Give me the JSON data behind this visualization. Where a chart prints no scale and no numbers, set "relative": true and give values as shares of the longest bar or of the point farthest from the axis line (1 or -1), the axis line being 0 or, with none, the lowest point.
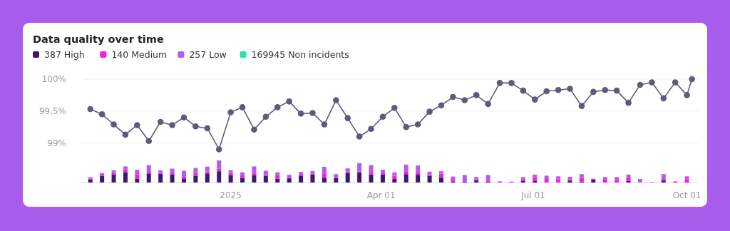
{
  "chart_data": [
    {
      "type": "line",
      "title": "Data quality over time",
      "grid": "y",
      "tick_labels": "y",
      "color": "#5f5a7a",
      "marker": "circle",
      "x": [
        "2024-10-09",
        "2024-10-16",
        "2024-10-23",
        "2024-10-30",
        "2024-11-06",
        "2024-11-13",
        "2024-11-20",
        "2024-11-27",
        "2024-12-04",
        "2024-12-11",
        "2024-12-18",
        "2024-12-25",
        "2025-01-01",
        "2025-01-08",
        "2025-01-15",
        "2025-01-22",
        "2025-01-29",
        "2025-02-05",
        "2025-02-12",
        "2025-02-19",
        "2025-02-26",
        "2025-03-05",
        "2025-03-12",
        "2025-03-19",
        "2025-03-26",
        "2025-04-02",
        "2025-04-09",
        "2025-04-16",
        "2025-04-23",
        "2025-04-30",
        "2025-05-07",
        "2025-05-14",
        "2025-05-21",
        "2025-05-28",
        "2025-06-04",
        "2025-06-11",
        "2025-06-18",
        "2025-06-25",
        "2025-07-02",
        "2025-07-09",
        "2025-07-16",
        "2025-07-23",
        "2025-07-30",
        "2025-08-06",
        "2025-08-13",
        "2025-08-20",
        "2025-08-27",
        "2025-09-03",
        "2025-09-10",
        "2025-09-17",
        "2025-09-24",
        "2025-10-01",
        "2025-10-04"
      ],
      "xlim": [
        "2024-10-04",
        "2025-10-08"
      ],
      "ylim": [
        98.38,
        100
      ],
      "yticks": [
        {
          "value": 99,
          "label": "99%"
        },
        {
          "value": 99.5,
          "label": "99.5%"
        },
        {
          "value": 100,
          "label": "100%"
        }
      ],
      "values": [
        99.53,
        99.45,
        99.29,
        99.13,
        99.28,
        99.03,
        99.33,
        99.28,
        99.4,
        99.26,
        99.23,
        98.9,
        99.48,
        99.56,
        99.21,
        99.41,
        99.56,
        99.65,
        99.46,
        99.47,
        99.29,
        99.67,
        99.39,
        99.1,
        99.22,
        99.41,
        99.55,
        99.25,
        99.29,
        99.49,
        99.59,
        99.72,
        99.67,
        99.75,
        99.61,
        99.94,
        99.94,
        99.82,
        99.68,
        99.81,
        99.83,
        99.85,
        99.58,
        99.8,
        99.83,
        99.82,
        99.63,
        99.91,
        99.95,
        99.7,
        99.95,
        99.75,
        100
      ]
    },
    {
      "type": "bar",
      "stacked": true,
      "relative": true,
      "tick_labels": "x",
      "legend": "top left",
      "x": [
        "2024-10-09",
        "2024-10-16",
        "2024-10-23",
        "2024-10-30",
        "2024-11-06",
        "2024-11-13",
        "2024-11-20",
        "2024-11-27",
        "2024-12-04",
        "2024-12-11",
        "2024-12-18",
        "2024-12-25",
        "2025-01-01",
        "2025-01-08",
        "2025-01-15",
        "2025-01-22",
        "2025-01-29",
        "2025-02-05",
        "2025-02-12",
        "2025-02-19",
        "2025-02-26",
        "2025-03-05",
        "2025-03-12",
        "2025-03-19",
        "2025-03-26",
        "2025-04-02",
        "2025-04-09",
        "2025-04-16",
        "2025-04-23",
        "2025-04-30",
        "2025-05-07",
        "2025-05-14",
        "2025-05-21",
        "2025-05-28",
        "2025-06-04",
        "2025-06-11",
        "2025-06-18",
        "2025-06-25",
        "2025-07-02",
        "2025-07-09",
        "2025-07-16",
        "2025-07-23",
        "2025-07-30",
        "2025-08-06",
        "2025-08-13",
        "2025-08-20",
        "2025-08-27",
        "2025-09-03",
        "2025-09-10",
        "2025-09-17",
        "2025-09-24",
        "2025-10-01"
      ],
      "xlim": [
        "2024-10-04",
        "2025-10-08"
      ],
      "xticks": [
        {
          "value": "2025-01-01",
          "label": "2025"
        },
        {
          "value": "2025-04-01",
          "label": "Apr 01"
        },
        {
          "value": "2025-07-01",
          "label": "Jul 01"
        },
        {
          "value": "2025-10-01",
          "label": "Oct 01"
        }
      ],
      "series": [
        {
          "name": "387 High",
          "color": "#3b1a6e",
          "values": [
            0.13,
            0.3,
            0.36,
            0.47,
            0.18,
            0.41,
            0.39,
            0.36,
            0.16,
            0.31,
            0.41,
            0.51,
            0.34,
            0.21,
            0.34,
            0.29,
            0.18,
            0.19,
            0.29,
            0.36,
            0.22,
            0.21,
            0.43,
            0.45,
            0.36,
            0.36,
            0.16,
            0.38,
            0.35,
            0.3,
            0.22,
            0.03,
            0.03,
            0.1,
            0.04,
            0,
            0,
            0.07,
            0.07,
            0,
            0,
            0.09,
            0.05,
            0.14,
            0,
            0,
            0.07,
            0,
            0,
            0.09,
            0,
            0
          ]
        },
        {
          "name": "140 Medium",
          "color": "#ff1ad9",
          "values": [
            0.04,
            0.09,
            0.07,
            0.13,
            0.2,
            0.07,
            0.04,
            0.1,
            0.1,
            0.13,
            0.09,
            0.11,
            0.1,
            0.13,
            0.1,
            0.05,
            0.15,
            0.03,
            0.07,
            0.05,
            0.17,
            0.04,
            0.06,
            0.05,
            0.09,
            0.06,
            0.14,
            0.13,
            0.11,
            0.07,
            0.18,
            0.07,
            0.03,
            0.04,
            0.07,
            0.05,
            0.04,
            0.06,
            0.17,
            0.16,
            0.15,
            0.05,
            0.16,
            0.03,
            0.13,
            0.12,
            0.16,
            0.02,
            0.02,
            0.07,
            0.05,
            0.15
          ]
        },
        {
          "name": "257 Low",
          "color": "#b35cf0",
          "values": [
            0.07,
            0.03,
            0.12,
            0.13,
            0.19,
            0.31,
            0.12,
            0.17,
            0.27,
            0.22,
            0.22,
            0.38,
            0.12,
            0.12,
            0.29,
            0.19,
            0.13,
            0.13,
            0.12,
            0.11,
            0.32,
            0.13,
            0.15,
            0.38,
            0.34,
            0.16,
            0.16,
            0.3,
            0.31,
            0.12,
            0.11,
            0.17,
            0.28,
            0.11,
            0.23,
            0,
            0,
            0.12,
            0.12,
            0.15,
            0.13,
            0.12,
            0.17,
            0,
            0.12,
            0.13,
            0.13,
            0.14,
            0,
            0.22,
            0,
            0.13
          ]
        },
        {
          "name": "169945 Non incidents",
          "color": "#1de9a0",
          "values": [
            null,
            null,
            null,
            null,
            null,
            null,
            null,
            null,
            null,
            null,
            null,
            null,
            null,
            null,
            null,
            null,
            null,
            null,
            null,
            null,
            null,
            null,
            null,
            null,
            null,
            null,
            null,
            null,
            null,
            null,
            null,
            null,
            null,
            null,
            null,
            null,
            null,
            null,
            null,
            null,
            null,
            null,
            null,
            null,
            null,
            null,
            null,
            null,
            null,
            null,
            null,
            null
          ]
        }
      ]
    }
  ]
}
